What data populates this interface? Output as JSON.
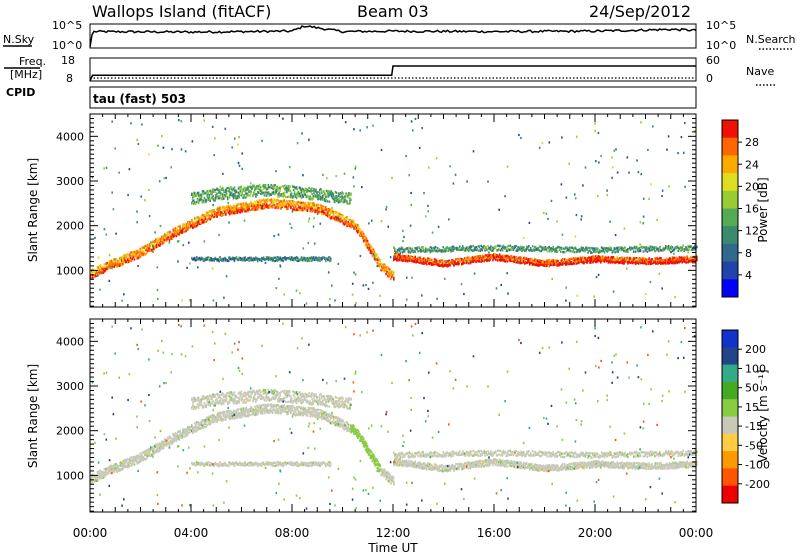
{
  "header": {
    "station": "Wallops Island (fitACF)",
    "beam": "Beam 03",
    "date": "24/Sep/2012"
  },
  "labels": {
    "nsky": "N.Sky",
    "freq_line1": "Freq.",
    "freq_line2": "[MHz]",
    "cpid": "CPID",
    "nsearch": "N.Search",
    "nave": "Nave",
    "cpid_value": "tau (fast) 503",
    "x_axis": "Time UT",
    "y_axis_power": "Slant Range [km]",
    "y_axis_velocity": "Slant Range [km]",
    "power_colorbar_label": "Power [dB]",
    "velocity_colorbar_label": "Velocity [m s⁻¹]"
  },
  "colors": {
    "power": [
      "#0000ff",
      "#2244aa",
      "#2f6a8a",
      "#3a8a6e",
      "#55aa55",
      "#99cc33",
      "#dddd22",
      "#ffaa00",
      "#ff6600",
      "#ee1100"
    ],
    "velocity": [
      "#ee0000",
      "#ff5500",
      "#ff9900",
      "#ffcc44",
      "#c8c8b8",
      "#88cc44",
      "#44aa22",
      "#33aa88",
      "#224488",
      "#1133cc"
    ]
  },
  "chart_data": [
    {
      "type": "line",
      "name_left": "N.Sky",
      "name_right": "N.Search",
      "x_range_hours": [
        0,
        24
      ],
      "y_left_ticks": [
        "10^5",
        "10^0"
      ],
      "y_right_ticks": [
        "10^5",
        "10^0"
      ],
      "x": [
        0,
        0.1,
        0.2,
        4,
        8,
        8.5,
        10,
        12,
        16,
        20,
        23,
        24
      ],
      "nsky_log10": [
        0,
        3.5,
        3.5,
        3.4,
        3.6,
        4.8,
        3.5,
        3.6,
        3.5,
        3.6,
        4.0,
        3.8
      ]
    },
    {
      "type": "line",
      "name_left": "Freq.",
      "name_right": "Nave",
      "x_range_hours": [
        0,
        24
      ],
      "y_left_ticks": [
        "18",
        "8"
      ],
      "y_right_ticks": [
        "60",
        "0"
      ],
      "x": [
        0,
        0.1,
        11.95,
        12.0,
        24
      ],
      "freq_mhz": [
        8,
        10.5,
        10.5,
        14.5,
        14.5
      ],
      "nave": [
        0,
        0,
        0,
        0,
        0
      ]
    },
    {
      "type": "heatmap",
      "title": "Power [dB]",
      "ylabel": "Slant Range [km]",
      "xlabel": "Time UT",
      "x_range_hours": [
        0,
        24
      ],
      "y_range_km": [
        180,
        4500
      ],
      "y_ticks": [
        "1000",
        "2000",
        "3000",
        "4000"
      ],
      "colorbar_ticks": [
        "28",
        "24",
        "20",
        "16",
        "12",
        "8",
        "4"
      ],
      "colorbar_range": [
        0,
        32
      ],
      "bands": [
        {
          "kind": "f_region",
          "x": [
            0,
            0.5,
            2,
            3.5,
            5,
            7,
            9,
            10.5,
            11.5,
            12
          ],
          "range_km": [
            900,
            1050,
            1400,
            1900,
            2300,
            2500,
            2400,
            2000,
            1100,
            850
          ],
          "power_db": 24
        },
        {
          "kind": "upper_echo",
          "x": [
            4,
            5,
            7,
            9,
            10.3
          ],
          "range_km": [
            2600,
            2700,
            2800,
            2700,
            2600
          ],
          "power_db": 14
        },
        {
          "kind": "mid_echo",
          "x": [
            4,
            6,
            8,
            9.5
          ],
          "range_km": [
            1250,
            1250,
            1250,
            1250
          ],
          "power_db": 10
        },
        {
          "kind": "sea_scatter",
          "x": [
            12,
            14,
            16,
            18,
            20,
            22,
            24
          ],
          "range_km": [
            1300,
            1150,
            1300,
            1150,
            1250,
            1200,
            1250
          ],
          "power_db": 28
        },
        {
          "kind": "scatter_layer",
          "x": [
            12,
            16,
            20,
            24
          ],
          "range_km": [
            1450,
            1500,
            1450,
            1500
          ],
          "power_db": 12
        }
      ]
    },
    {
      "type": "heatmap",
      "title": "Velocity [m s^-1]",
      "ylabel": "Slant Range [km]",
      "xlabel": "Time UT",
      "x_range_hours": [
        0,
        24
      ],
      "x_ticks": [
        "00:00",
        "04:00",
        "08:00",
        "12:00",
        "16:00",
        "20:00",
        "00:00"
      ],
      "y_range_km": [
        180,
        4500
      ],
      "y_ticks": [
        "1000",
        "2000",
        "3000",
        "4000"
      ],
      "colorbar_ticks": [
        "200",
        "100",
        "50",
        "15",
        "-15",
        "-50",
        "-100",
        "-200"
      ]
    }
  ]
}
